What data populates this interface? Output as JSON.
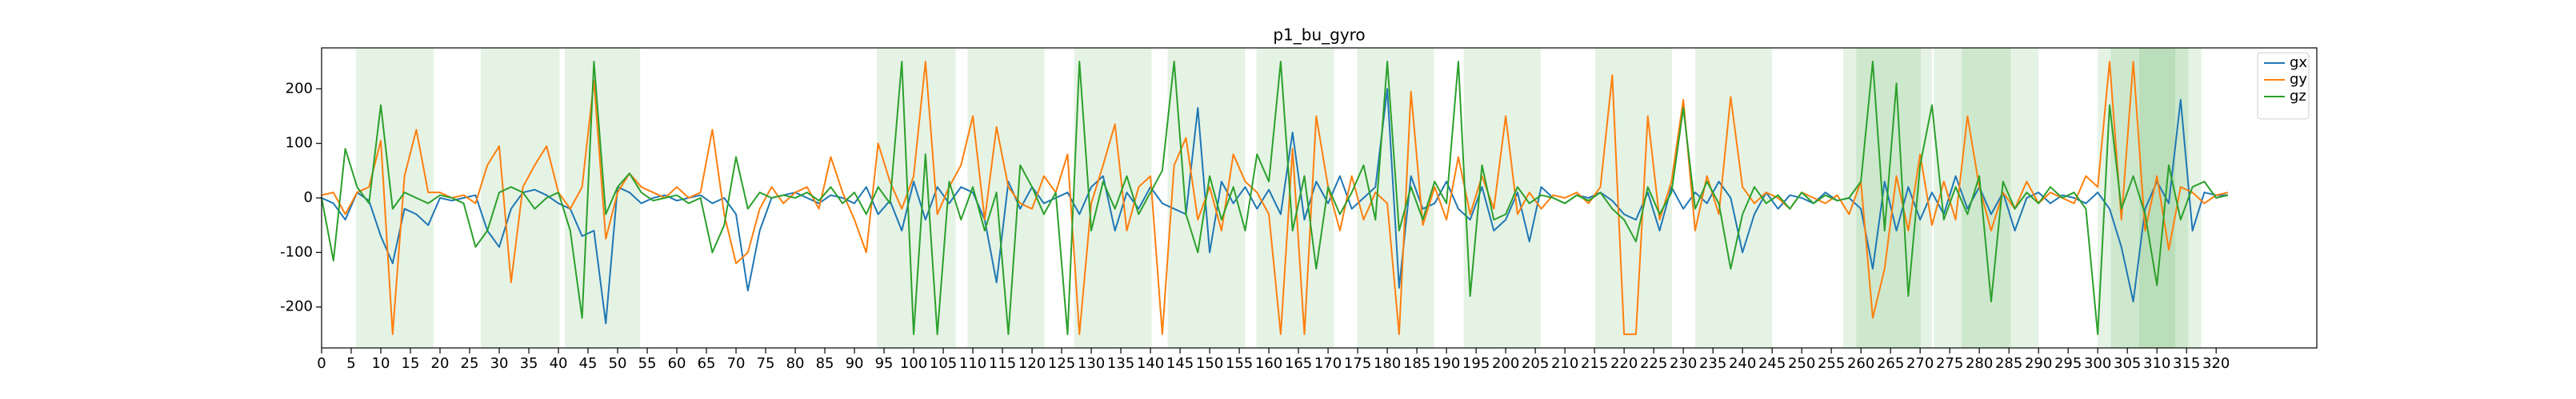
{
  "chart_data": {
    "type": "line",
    "title": "p1_bu_gyro",
    "x": [
      0,
      2,
      4,
      6,
      8,
      10,
      12,
      14,
      16,
      18,
      20,
      22,
      24,
      26,
      28,
      30,
      32,
      34,
      36,
      38,
      40,
      42,
      44,
      46,
      48,
      50,
      52,
      54,
      56,
      58,
      60,
      62,
      64,
      66,
      68,
      70,
      72,
      74,
      76,
      78,
      80,
      82,
      84,
      86,
      88,
      90,
      92,
      94,
      96,
      98,
      100,
      102,
      104,
      106,
      108,
      110,
      112,
      114,
      116,
      118,
      120,
      122,
      124,
      126,
      128,
      130,
      132,
      134,
      136,
      138,
      140,
      142,
      144,
      146,
      148,
      150,
      152,
      154,
      156,
      158,
      160,
      162,
      164,
      166,
      168,
      170,
      172,
      174,
      176,
      178,
      180,
      182,
      184,
      186,
      188,
      190,
      192,
      194,
      196,
      198,
      200,
      202,
      204,
      206,
      208,
      210,
      212,
      214,
      216,
      218,
      220,
      222,
      224,
      226,
      228,
      230,
      232,
      234,
      236,
      238,
      240,
      242,
      244,
      246,
      248,
      250,
      252,
      254,
      256,
      258,
      260,
      262,
      264,
      266,
      268,
      270,
      272,
      274,
      276,
      278,
      280,
      282,
      284,
      286,
      288,
      290,
      292,
      294,
      296,
      298,
      300,
      302,
      304,
      306,
      308,
      310,
      312,
      314,
      316,
      318,
      320,
      322
    ],
    "series": [
      {
        "name": "gx",
        "color": "#1f77b4",
        "values": [
          0,
          -10,
          -40,
          10,
          -5,
          -70,
          -120,
          -20,
          -30,
          -50,
          0,
          -5,
          0,
          5,
          -60,
          -90,
          -20,
          10,
          15,
          5,
          -10,
          -20,
          -70,
          -60,
          -230,
          20,
          10,
          -10,
          0,
          5,
          -5,
          0,
          5,
          -10,
          0,
          -30,
          -170,
          -60,
          0,
          5,
          10,
          0,
          -10,
          5,
          0,
          -10,
          20,
          -30,
          -5,
          -60,
          30,
          -40,
          20,
          -10,
          20,
          10,
          -40,
          -155,
          30,
          -20,
          20,
          -10,
          0,
          10,
          -30,
          20,
          40,
          -60,
          10,
          -20,
          20,
          -10,
          -20,
          -30,
          165,
          -100,
          30,
          -10,
          20,
          -20,
          15,
          -30,
          120,
          -40,
          30,
          -10,
          40,
          -20,
          0,
          20,
          200,
          -165,
          40,
          -20,
          -10,
          30,
          -20,
          -40,
          20,
          -60,
          -40,
          10,
          -80,
          20,
          0,
          -10,
          5,
          0,
          10,
          -5,
          -30,
          -40,
          10,
          -60,
          20,
          -20,
          10,
          -10,
          30,
          0,
          -100,
          -30,
          10,
          -20,
          5,
          0,
          -10,
          10,
          -5,
          0,
          -20,
          -130,
          30,
          -60,
          20,
          -40,
          10,
          -30,
          40,
          -20,
          20,
          -30,
          10,
          -60,
          0,
          10,
          -10,
          5,
          0,
          -10,
          10,
          -20,
          -90,
          -190,
          -20,
          30,
          -10,
          180,
          -60,
          10,
          5,
          5
        ]
      },
      {
        "name": "gy",
        "color": "#ff7f0e",
        "values": [
          5,
          10,
          -30,
          10,
          20,
          105,
          -250,
          40,
          125,
          10,
          10,
          0,
          5,
          -10,
          60,
          95,
          -155,
          20,
          60,
          95,
          10,
          -20,
          20,
          215,
          -75,
          10,
          45,
          20,
          10,
          0,
          20,
          0,
          10,
          125,
          -30,
          -120,
          -100,
          -20,
          20,
          -10,
          10,
          20,
          -20,
          75,
          10,
          -40,
          -100,
          100,
          30,
          -20,
          40,
          250,
          -30,
          20,
          60,
          150,
          -40,
          130,
          20,
          -10,
          -20,
          40,
          10,
          80,
          -250,
          -10,
          60,
          135,
          -60,
          20,
          40,
          -250,
          60,
          110,
          -40,
          20,
          -60,
          80,
          30,
          10,
          -30,
          -250,
          90,
          -250,
          150,
          20,
          -60,
          40,
          -40,
          10,
          -10,
          -250,
          195,
          -50,
          20,
          -40,
          75,
          -30,
          40,
          -20,
          150,
          -30,
          10,
          -20,
          5,
          0,
          10,
          -10,
          20,
          225,
          -250,
          -250,
          150,
          -40,
          30,
          180,
          -60,
          40,
          -30,
          185,
          20,
          -10,
          10,
          0,
          -20,
          10,
          0,
          -10,
          5,
          -30,
          30,
          -220,
          -130,
          40,
          -60,
          80,
          -50,
          30,
          -40,
          150,
          20,
          -60,
          10,
          -20,
          30,
          -10,
          10,
          0,
          -10,
          40,
          20,
          250,
          -40,
          250,
          -60,
          40,
          -95,
          20,
          10,
          -10,
          5,
          10
        ]
      },
      {
        "name": "gz",
        "color": "#2ca02c",
        "values": [
          0,
          -115,
          90,
          20,
          -10,
          170,
          -20,
          10,
          0,
          -10,
          5,
          0,
          -10,
          -90,
          -60,
          10,
          20,
          10,
          -20,
          0,
          10,
          -60,
          -220,
          250,
          -30,
          20,
          45,
          10,
          -5,
          0,
          5,
          -10,
          0,
          -100,
          -50,
          75,
          -20,
          10,
          0,
          5,
          0,
          10,
          -5,
          20,
          -10,
          10,
          -30,
          20,
          -10,
          250,
          -250,
          80,
          -250,
          30,
          -40,
          20,
          -60,
          10,
          -250,
          60,
          20,
          -30,
          10,
          -250,
          250,
          -60,
          30,
          -20,
          40,
          -30,
          10,
          50,
          250,
          -30,
          -100,
          40,
          -40,
          20,
          -60,
          80,
          30,
          250,
          -60,
          40,
          -130,
          20,
          -30,
          10,
          60,
          -40,
          250,
          -60,
          20,
          -40,
          30,
          -10,
          250,
          -180,
          60,
          -40,
          -30,
          20,
          -10,
          5,
          0,
          -10,
          5,
          -5,
          10,
          -20,
          -40,
          -80,
          20,
          -30,
          10,
          165,
          -20,
          30,
          -10,
          -130,
          -30,
          20,
          -10,
          5,
          -20,
          10,
          -10,
          5,
          -5,
          0,
          30,
          250,
          -60,
          210,
          -180,
          60,
          170,
          -40,
          20,
          -30,
          40,
          -190,
          30,
          -20,
          10,
          -10,
          20,
          0,
          10,
          -20,
          -250,
          170,
          -20,
          40,
          -30,
          -160,
          60,
          -40,
          20,
          30,
          0,
          5
        ]
      }
    ],
    "spans": [
      [
        5.8,
        18.9
      ],
      [
        26.9,
        40.2
      ],
      [
        41.1,
        53.8
      ],
      [
        93.8,
        107.1
      ],
      [
        109.1,
        122.1
      ],
      [
        127.1,
        140.2
      ],
      [
        142.9,
        156
      ],
      [
        157.9,
        171
      ],
      [
        174.9,
        187.9
      ],
      [
        192.9,
        205.9
      ],
      [
        215.1,
        228.1
      ],
      [
        232,
        245
      ],
      [
        257,
        270.1
      ],
      [
        259.2,
        272
      ],
      [
        272.3,
        285.3
      ],
      [
        277,
        290
      ],
      [
        300,
        313.1
      ],
      [
        302.2,
        315.3
      ],
      [
        307,
        317.5
      ]
    ],
    "span_color": "#2ca02c",
    "span_opacity": 0.12,
    "xlim": [
      0,
      337
    ],
    "xticks": [
      0,
      5,
      10,
      15,
      20,
      25,
      30,
      35,
      40,
      45,
      50,
      55,
      60,
      65,
      70,
      75,
      80,
      85,
      90,
      95,
      100,
      105,
      110,
      115,
      120,
      125,
      130,
      135,
      140,
      145,
      150,
      155,
      160,
      165,
      170,
      175,
      180,
      185,
      190,
      195,
      200,
      205,
      210,
      215,
      220,
      225,
      230,
      235,
      240,
      245,
      250,
      255,
      260,
      265,
      270,
      275,
      280,
      285,
      290,
      295,
      300,
      305,
      310,
      315,
      320
    ],
    "ylim": [
      -275,
      275
    ],
    "yticks": [
      -200,
      -100,
      0,
      100,
      200
    ],
    "legend": "upper right"
  }
}
